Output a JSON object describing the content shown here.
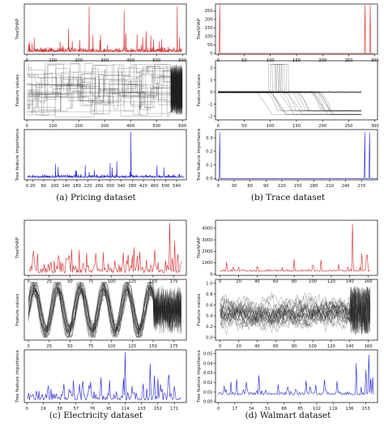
{
  "colors": {
    "treeshap": "#d62728",
    "importance": "#1f1fd6",
    "features": "#222222",
    "axis": "#000000"
  },
  "panels": [
    {
      "caption": "(a) Pricing dataset",
      "charts": [
        {
          "type": "line",
          "role": "treeshap",
          "ylabel": "TreeSHAP",
          "xlim": [
            -10,
            615
          ],
          "xticks": [
            "0",
            "100",
            "200",
            "300",
            "400",
            "500",
            "600"
          ],
          "yticks": [],
          "n": 600,
          "seed": 11,
          "baseline": 0.08,
          "noise": 0.1,
          "spike_prob": 0.05,
          "peaks": [
            [
              240,
              1.0
            ],
            [
              375,
              0.92
            ],
            [
              580,
              1.0
            ],
            [
              160,
              0.55
            ],
            [
              460,
              0.5
            ]
          ]
        },
        {
          "type": "line",
          "role": "features",
          "ylabel": "Feature values",
          "xlim": [
            -10,
            615
          ],
          "xticks": [
            "0",
            "100",
            "200",
            "300",
            "400",
            "500",
            "600"
          ],
          "yticks": [],
          "variant": "pricing",
          "n": 600,
          "seed": 21
        },
        {
          "type": "line",
          "role": "importance",
          "ylabel": "Tree feature importance",
          "xlim": [
            -10,
            575
          ],
          "xticks": [
            "0",
            "20",
            "60",
            "100",
            "140",
            "180",
            "220",
            "260",
            "300",
            "340",
            "380",
            "420",
            "460",
            "500",
            "540"
          ],
          "yticks": [],
          "n": 570,
          "seed": 31,
          "baseline": 0.05,
          "noise": 0.07,
          "spike_prob": 0.03,
          "peaks": [
            [
              375,
              1.0
            ],
            [
              300,
              0.35
            ],
            [
              210,
              0.3
            ]
          ]
        }
      ]
    },
    {
      "caption": "(b) Trace dataset",
      "charts": [
        {
          "type": "line",
          "role": "treeshap",
          "ylabel": "TreeSHAP",
          "xlim": [
            -5,
            305
          ],
          "xticks": [
            "0",
            "50",
            "100",
            "150",
            "200",
            "250",
            "300"
          ],
          "yticks": [
            "0",
            "50",
            "100",
            "150",
            "200",
            "250"
          ],
          "ylim": [
            -5,
            290
          ],
          "n": 300,
          "spikes": [
            [
              3,
              285
            ],
            [
              281,
              285
            ],
            [
              291,
              285
            ]
          ]
        },
        {
          "type": "line",
          "role": "features",
          "ylabel": "Feature values",
          "xlim": [
            -5,
            305
          ],
          "xticks": [
            "0",
            "50",
            "100",
            "150",
            "200",
            "250",
            "300"
          ],
          "yticks": [
            "-2",
            "-1",
            "0",
            "1",
            "2"
          ],
          "ylim": [
            -2.3,
            2.6
          ],
          "variant": "trace",
          "n": 275,
          "seed": 41
        },
        {
          "type": "line",
          "role": "importance",
          "ylabel": "Tree feature importance",
          "xlim": [
            -5,
            300
          ],
          "xticks": [
            "0",
            "30",
            "60",
            "90",
            "120",
            "150",
            "180",
            "210",
            "240",
            "270"
          ],
          "yticks": [
            "0.0",
            "0.1",
            "0.2",
            "0.3"
          ],
          "ylim": [
            -0.01,
            0.36
          ],
          "n": 300,
          "spikes": [
            [
              3,
              0.34
            ],
            [
              276,
              0.34
            ],
            [
              285,
              0.34
            ]
          ]
        }
      ]
    },
    {
      "caption": "(c) Electricity dataset",
      "charts": [
        {
          "type": "line",
          "role": "treeshap",
          "ylabel": "TreeSHAP",
          "xlim": [
            -5,
            190
          ],
          "xticks": [
            "0",
            "25",
            "50",
            "75",
            "100",
            "125",
            "150",
            "175"
          ],
          "yticks": [],
          "n": 185,
          "seed": 51,
          "baseline": 0.15,
          "noise": 0.25,
          "spike_prob": 0.25,
          "peaks": [
            [
              170,
              1.0
            ],
            [
              176,
              0.7
            ],
            [
              90,
              0.5
            ],
            [
              125,
              0.45
            ]
          ]
        },
        {
          "type": "line",
          "role": "features",
          "ylabel": "Feature values",
          "xlim": [
            -5,
            190
          ],
          "xticks": [
            "0",
            "25",
            "50",
            "75",
            "100",
            "125",
            "150",
            "175"
          ],
          "yticks": [],
          "variant": "electricity",
          "n": 185,
          "seed": 61
        },
        {
          "type": "line",
          "role": "importance",
          "ylabel": "Tree feature importance",
          "xlim": [
            -3,
            185
          ],
          "xticks": [
            "0",
            "19",
            "38",
            "57",
            "76",
            "95",
            "114",
            "133",
            "152",
            "171"
          ],
          "yticks": [],
          "n": 180,
          "seed": 71,
          "baseline": 0.15,
          "noise": 0.2,
          "spike_prob": 0.2,
          "peaks": [
            [
              114,
              1.0
            ],
            [
              143,
              0.8
            ],
            [
              86,
              0.55
            ],
            [
              165,
              0.6
            ]
          ]
        }
      ]
    },
    {
      "caption": "(d) Walmart dataset",
      "charts": [
        {
          "type": "line",
          "role": "treeshap",
          "ylabel": "TreeSHAP",
          "xlim": [
            -5,
            170
          ],
          "xticks": [
            "0",
            "20",
            "40",
            "60",
            "80",
            "100",
            "120",
            "140",
            "160"
          ],
          "yticks": [
            "0",
            "1000",
            "2000",
            "3000",
            "4000"
          ],
          "ylim": [
            -100,
            4700
          ],
          "n": 163,
          "seed": 81,
          "baseline": 250,
          "noise": 220,
          "spike_prob": 0.1,
          "peaks": [
            [
              143,
              4400
            ],
            [
              153,
              1800
            ],
            [
              158,
              1600
            ],
            [
              20,
              650
            ],
            [
              40,
              700
            ],
            [
              100,
              800
            ]
          ]
        },
        {
          "type": "line",
          "role": "features",
          "ylabel": "Feature values",
          "xlim": [
            -5,
            170
          ],
          "xticks": [
            "0",
            "20",
            "40",
            "60",
            "80",
            "100",
            "120",
            "140",
            "160"
          ],
          "yticks": [
            "0.0",
            "0.2",
            "0.4",
            "0.6",
            "0.8",
            "1.0"
          ],
          "ylim": [
            -0.05,
            1.07
          ],
          "variant": "walmart",
          "n": 163,
          "seed": 91
        },
        {
          "type": "line",
          "role": "importance",
          "ylabel": "Tree feature importance",
          "xlim": [
            -3,
            165
          ],
          "xticks": [
            "0",
            "17",
            "34",
            "51",
            "68",
            "85",
            "102",
            "119",
            "136",
            "153"
          ],
          "yticks": [
            "0.00",
            "0.01",
            "0.02",
            "0.03",
            "0.04",
            "0.05"
          ],
          "ylim": [
            -0.001,
            0.054
          ],
          "n": 162,
          "seed": 97,
          "baseline": 0.007,
          "noise": 0.006,
          "spike_prob": 0.15,
          "peaks": [
            [
              143,
              0.04
            ],
            [
              156,
              0.049
            ],
            [
              153,
              0.033
            ],
            [
              110,
              0.023
            ],
            [
              62,
              0.018
            ]
          ]
        }
      ]
    }
  ]
}
